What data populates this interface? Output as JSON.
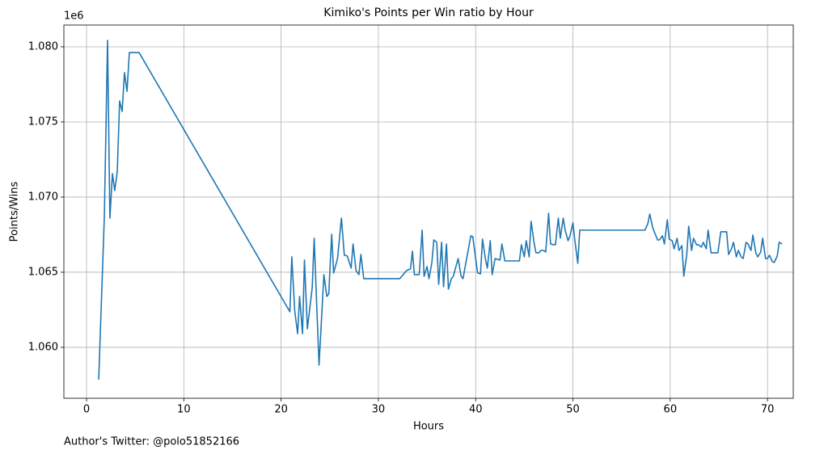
{
  "chart_data": {
    "type": "line",
    "title": "Kimiko's Points per Win ratio by Hour",
    "x_label": "Hours",
    "y_label": "Points/Wins",
    "y_offset_label": "1e6",
    "footer": "Author's Twitter: @polo51852166",
    "color": "#1f77b4",
    "grid": true,
    "xlim": [
      -2.33,
      72.65
    ],
    "ylim": [
      1056610,
      1081450
    ],
    "xticks": [
      0,
      10,
      20,
      30,
      40,
      50,
      60,
      70
    ],
    "yticks": [
      {
        "value": 1060000,
        "label": "1.060"
      },
      {
        "value": 1065000,
        "label": "1.065"
      },
      {
        "value": 1070000,
        "label": "1.070"
      },
      {
        "value": 1075000,
        "label": "1.075"
      },
      {
        "value": 1080000,
        "label": "1.080"
      }
    ],
    "x": [
      1.25,
      1.83,
      2.16,
      2.4,
      2.66,
      2.9,
      3.16,
      3.4,
      3.66,
      3.9,
      4.16,
      4.4,
      5.4,
      20.9,
      21.1,
      21.4,
      21.7,
      21.9,
      22.2,
      22.4,
      22.7,
      23.2,
      23.4,
      23.7,
      23.9,
      24.2,
      24.4,
      24.7,
      24.9,
      25.2,
      25.4,
      25.8,
      26.2,
      26.5,
      26.8,
      27.2,
      27.4,
      27.7,
      28.0,
      28.2,
      28.5,
      32.2,
      32.9,
      33.3,
      33.5,
      33.7,
      34.2,
      34.5,
      34.7,
      35.0,
      35.2,
      35.5,
      35.7,
      36.0,
      36.2,
      36.5,
      36.7,
      37.0,
      37.2,
      37.5,
      37.7,
      38.2,
      38.5,
      38.7,
      39.0,
      39.2,
      39.5,
      39.7,
      40.0,
      40.2,
      40.5,
      40.7,
      41.0,
      41.2,
      41.5,
      41.7,
      42.0,
      42.2,
      42.5,
      42.7,
      43.0,
      44.5,
      44.7,
      45.0,
      45.2,
      45.5,
      45.7,
      46.0,
      46.2,
      46.5,
      46.7,
      47.0,
      47.2,
      47.5,
      47.7,
      48.0,
      48.2,
      48.5,
      48.7,
      49.0,
      49.2,
      49.5,
      49.7,
      50.0,
      50.2,
      50.5,
      50.7,
      57.4,
      57.7,
      57.9,
      58.2,
      58.4,
      58.7,
      58.9,
      59.2,
      59.4,
      59.7,
      59.9,
      60.2,
      60.4,
      60.7,
      60.9,
      61.2,
      61.4,
      61.7,
      61.9,
      62.2,
      62.4,
      62.7,
      62.9,
      63.2,
      63.4,
      63.7,
      63.9,
      64.2,
      64.9,
      65.2,
      65.8,
      66.0,
      66.3,
      66.5,
      66.8,
      67.0,
      67.3,
      67.5,
      67.8,
      68.0,
      68.3,
      68.5,
      68.8,
      69.0,
      69.3,
      69.5,
      69.8,
      70.0,
      70.2,
      70.5,
      70.7,
      71.0,
      71.2,
      71.5
    ],
    "values": [
      1057850,
      1068710,
      1080430,
      1068600,
      1071560,
      1070430,
      1071720,
      1076400,
      1075700,
      1078280,
      1077040,
      1079620,
      1079620,
      1062370,
      1066020,
      1062420,
      1060910,
      1063390,
      1060910,
      1065810,
      1061240,
      1063980,
      1067260,
      1062150,
      1058820,
      1062420,
      1064840,
      1063390,
      1063550,
      1067530,
      1064950,
      1065910,
      1068600,
      1066130,
      1066080,
      1065270,
      1066880,
      1065110,
      1064840,
      1066180,
      1064570,
      1064570,
      1065110,
      1065220,
      1066400,
      1064840,
      1064840,
      1067800,
      1064730,
      1065380,
      1064570,
      1065650,
      1067150,
      1066990,
      1064190,
      1066990,
      1064030,
      1066880,
      1063870,
      1064570,
      1064730,
      1065910,
      1064730,
      1064570,
      1065650,
      1066340,
      1067420,
      1067370,
      1065910,
      1064950,
      1064890,
      1067200,
      1065910,
      1065270,
      1067100,
      1064840,
      1065910,
      1065860,
      1065810,
      1066880,
      1065750,
      1065750,
      1066830,
      1066020,
      1067100,
      1066020,
      1068390,
      1066990,
      1066290,
      1066290,
      1066450,
      1066450,
      1066340,
      1068920,
      1066880,
      1066830,
      1066830,
      1068600,
      1067260,
      1068600,
      1067800,
      1067100,
      1067420,
      1068280,
      1067100,
      1065590,
      1067800,
      1067800,
      1068230,
      1068870,
      1067960,
      1067630,
      1067150,
      1067150,
      1067420,
      1066880,
      1068490,
      1067200,
      1067100,
      1066560,
      1067260,
      1066450,
      1066770,
      1064730,
      1066180,
      1068060,
      1066450,
      1067260,
      1066830,
      1066830,
      1066670,
      1066990,
      1066560,
      1067800,
      1066290,
      1066290,
      1067690,
      1067690,
      1066180,
      1066560,
      1066990,
      1066020,
      1066450,
      1066020,
      1065910,
      1066990,
      1066880,
      1066450,
      1067470,
      1066290,
      1066020,
      1066340,
      1067260,
      1065910,
      1065910,
      1066130,
      1065700,
      1065650,
      1066080,
      1066990,
      1066880
    ]
  }
}
